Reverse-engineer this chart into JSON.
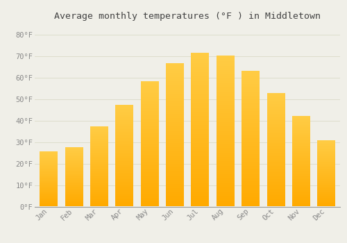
{
  "title": "Average monthly temperatures (°F ) in Middletown",
  "months": [
    "Jan",
    "Feb",
    "Mar",
    "Apr",
    "May",
    "Jun",
    "Jul",
    "Aug",
    "Sep",
    "Oct",
    "Nov",
    "Dec"
  ],
  "values": [
    25.5,
    27.5,
    37,
    47,
    58,
    66.5,
    71.5,
    70,
    63,
    52.5,
    42,
    30.5
  ],
  "bar_color": "#FFAA00",
  "bar_color_light": "#FFCC44",
  "background_color": "#F0EFE8",
  "grid_color": "#DDDDCC",
  "ylim": [
    0,
    85
  ],
  "yticks": [
    0,
    10,
    20,
    30,
    40,
    50,
    60,
    70,
    80
  ],
  "ytick_labels": [
    "0°F",
    "10°F",
    "20°F",
    "30°F",
    "40°F",
    "50°F",
    "60°F",
    "70°F",
    "80°F"
  ],
  "title_fontsize": 9.5,
  "tick_fontsize": 7.5,
  "title_color": "#444444",
  "tick_color": "#888888",
  "bar_width": 0.7
}
